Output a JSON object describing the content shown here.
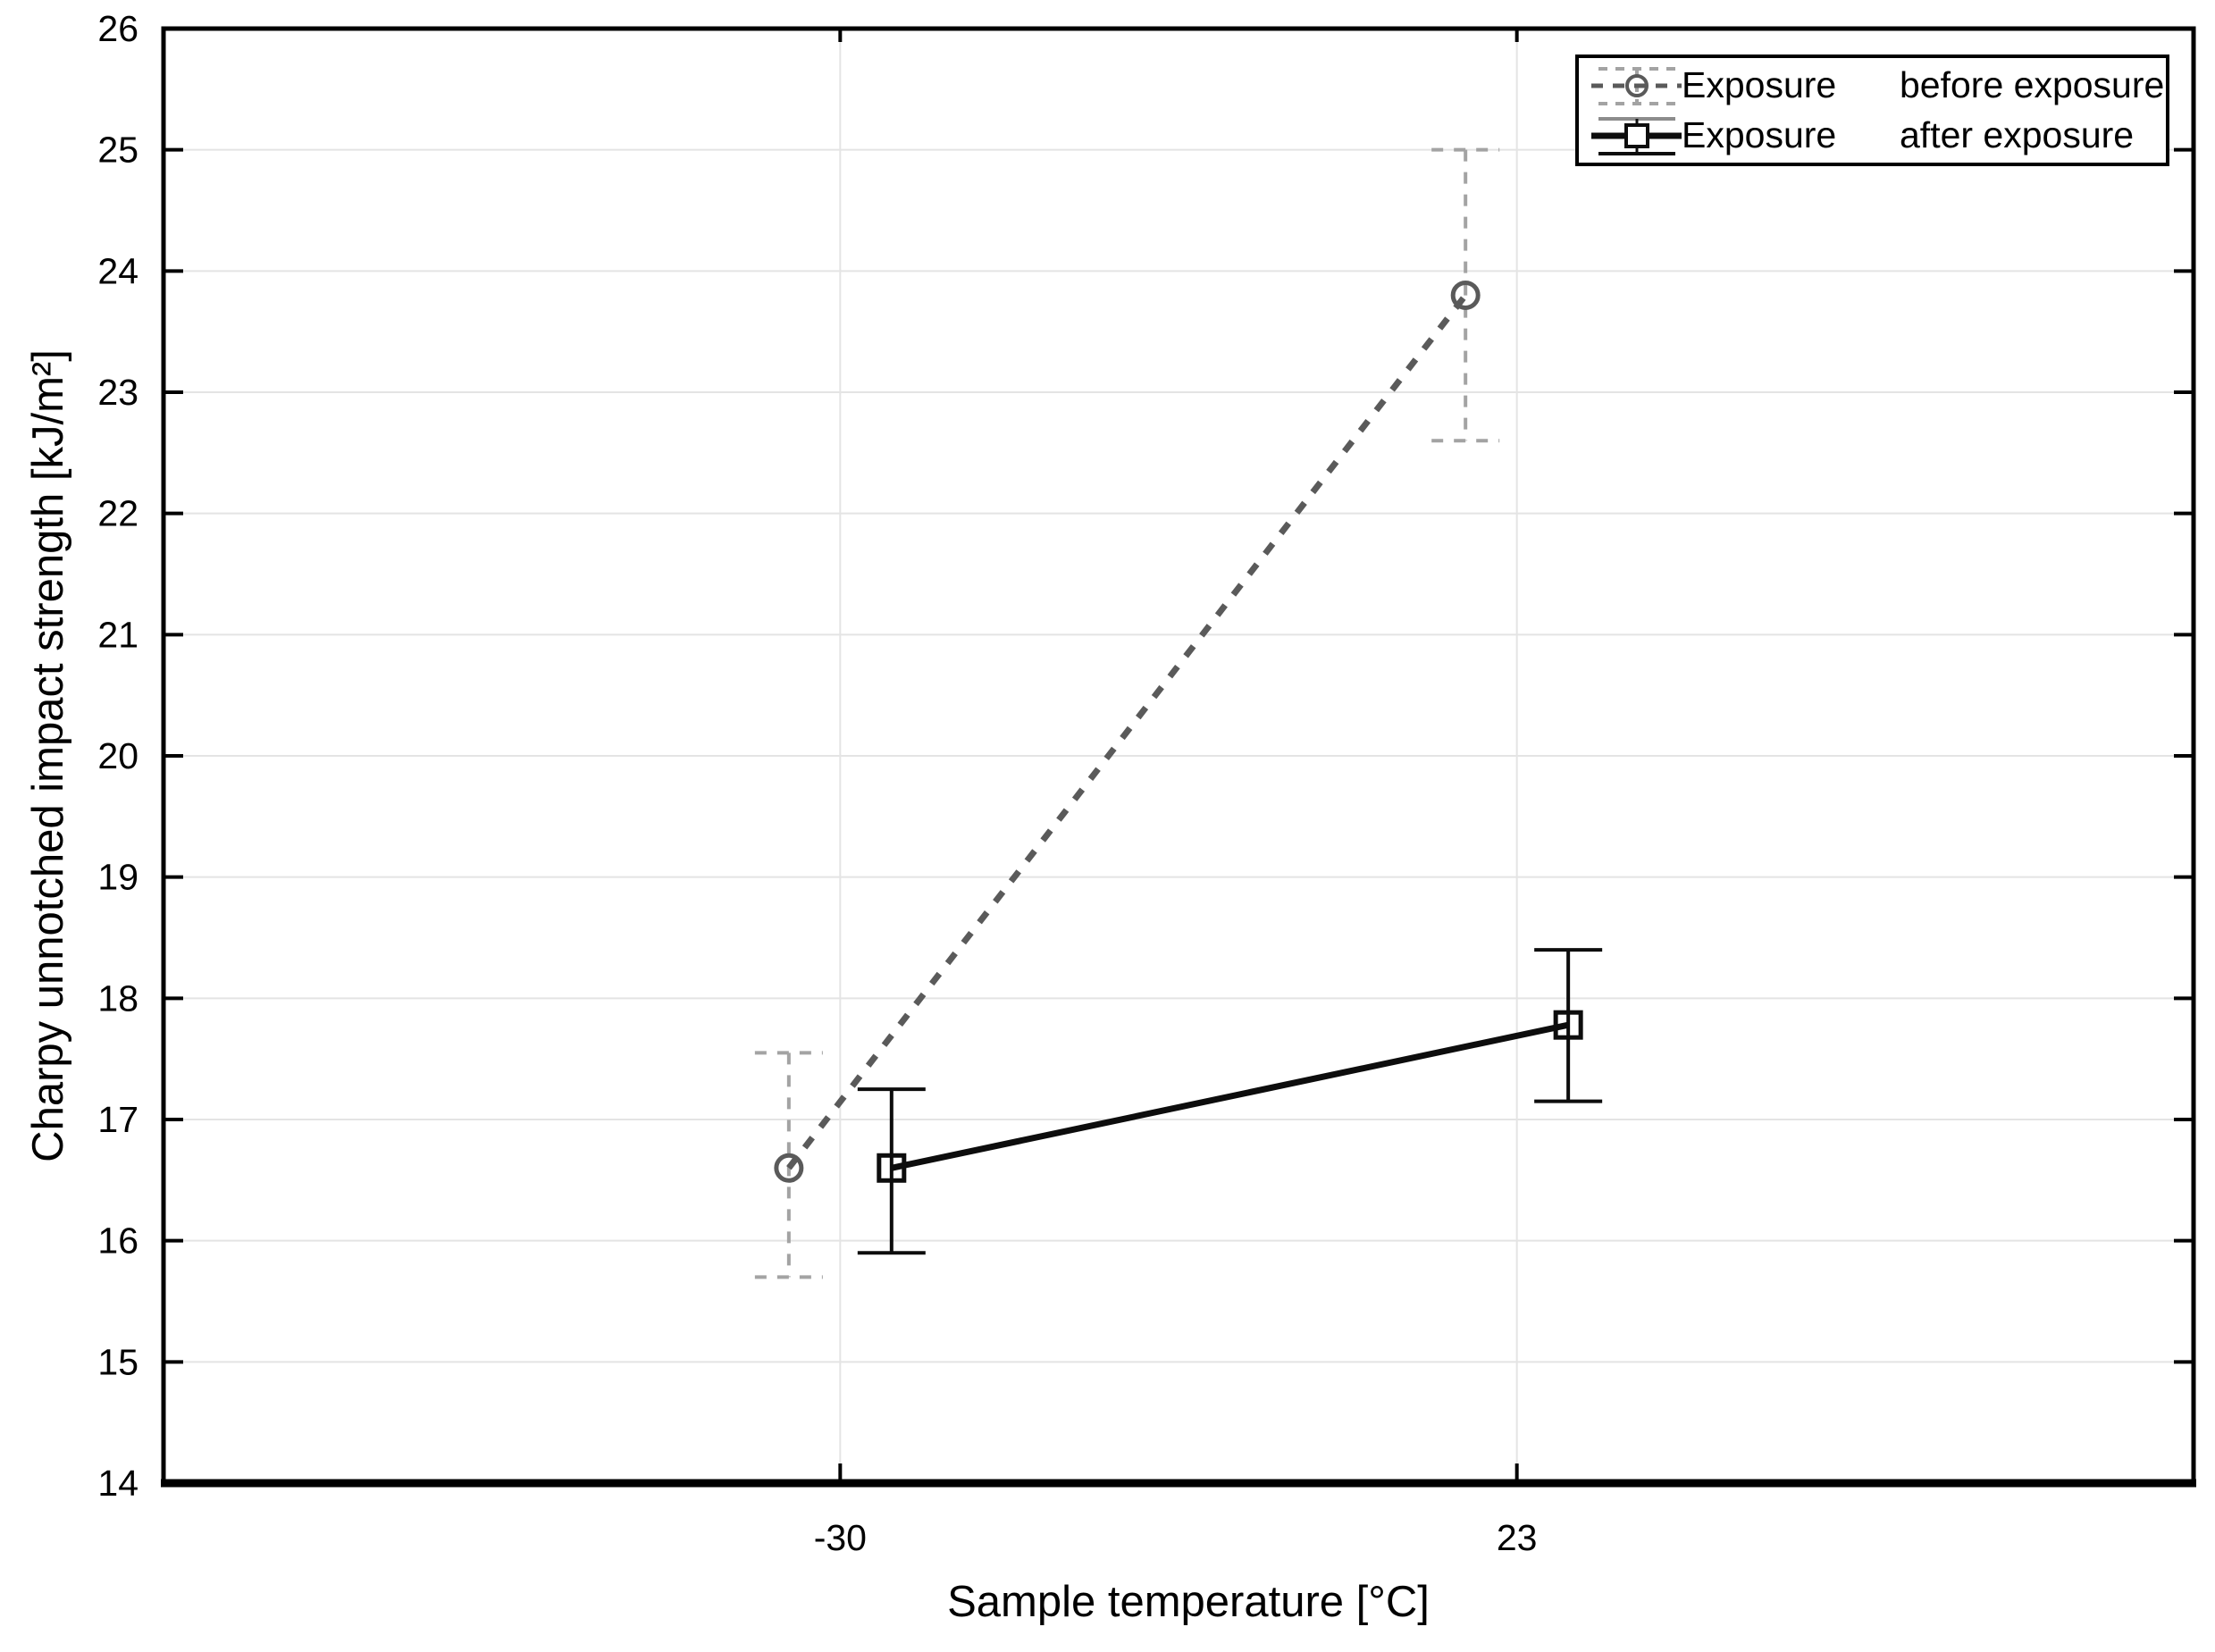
{
  "chart_data": {
    "type": "line",
    "title": "",
    "xlabel": "Sample temperature [°C]",
    "ylabel": "Charpy unnotched impact strength [kJ/m²]",
    "categories": [
      "-30",
      "23"
    ],
    "ylim": [
      14,
      26
    ],
    "yticks": [
      14,
      15,
      16,
      17,
      18,
      19,
      20,
      21,
      22,
      23,
      24,
      25,
      26
    ],
    "grid": {
      "horizontal": true,
      "vertical": true,
      "color": "#e4e4e4"
    },
    "frame_color": "#000000",
    "series": [
      {
        "name": "Exposure",
        "level": "before exposure",
        "style": "dashed",
        "marker": "circle",
        "color": "#5a5a5a",
        "error_color": "#a3a3a3",
        "values": [
          16.6,
          23.8
        ],
        "error_low": [
          15.7,
          22.6
        ],
        "error_high": [
          17.55,
          25.0
        ],
        "x_offset_frac": -0.0253
      },
      {
        "name": "Exposure",
        "level": "after exposure",
        "style": "solid",
        "marker": "square",
        "color": "#0d0d0d",
        "error_color": "#0d0d0d",
        "values": [
          16.6,
          17.78
        ],
        "error_low": [
          15.9,
          17.15
        ],
        "error_high": [
          17.25,
          18.4
        ],
        "x_offset_frac": 0.0253
      }
    ],
    "legend": {
      "position": "top-right",
      "entries": [
        {
          "series": "Exposure",
          "level": "before exposure"
        },
        {
          "series": "Exposure",
          "level": "after exposure"
        }
      ]
    }
  }
}
